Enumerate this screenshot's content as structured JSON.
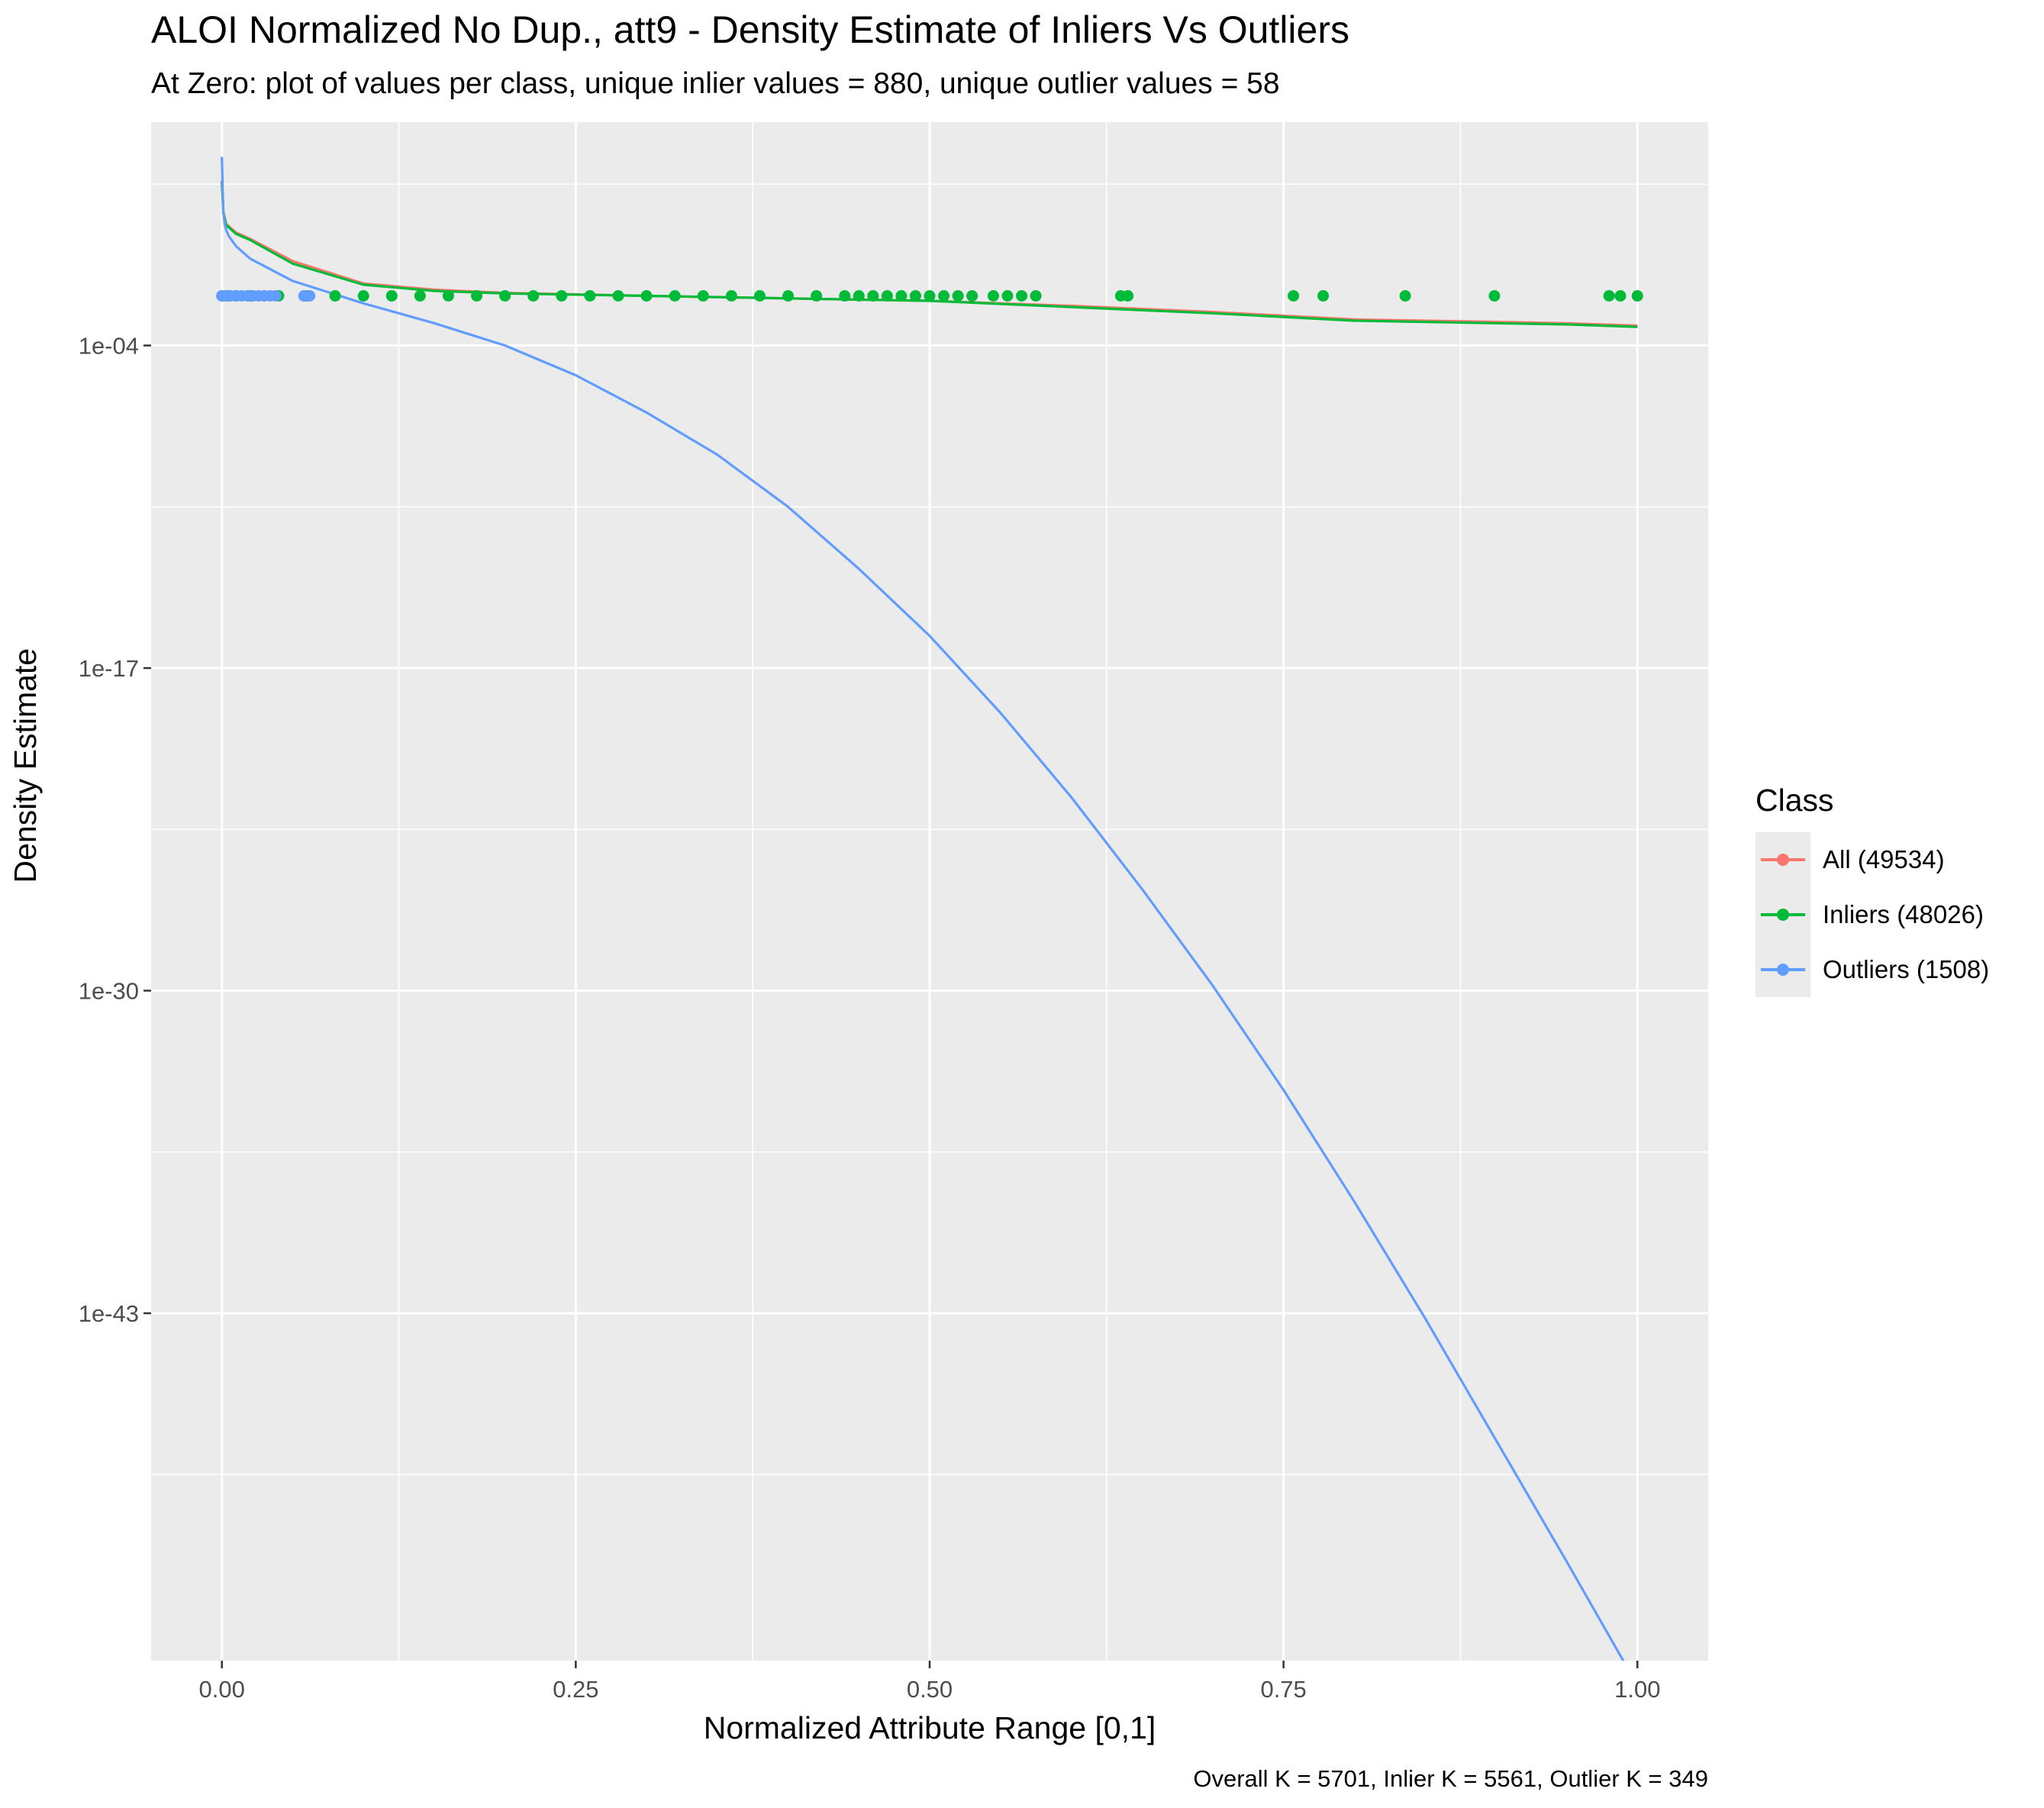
{
  "chart_data": {
    "type": "line",
    "title": "ALOI Normalized No Dup., att9 - Density Estimate of Inliers Vs Outliers",
    "subtitle": "At Zero: plot of values per class, unique inlier values = 880, unique outlier values = 58",
    "caption": "Overall K = 5701, Inlier K = 5561, Outlier K = 349",
    "xlabel": "Normalized Attribute Range [0,1]",
    "ylabel": "Density Estimate",
    "xlim": [
      -0.05,
      1.05
    ],
    "x_ticks": [
      0.0,
      0.25,
      0.5,
      0.75,
      1.0
    ],
    "x_tick_labels": [
      "0.00",
      "0.25",
      "0.50",
      "0.75",
      "1.00"
    ],
    "y_scale": "log10",
    "ylim_log10": [
      -57,
      5
    ],
    "y_ticks_log10": [
      -43,
      -30,
      -17,
      -4
    ],
    "y_tick_labels": [
      "1e-43",
      "1e-30",
      "1e-17",
      "1e-04"
    ],
    "grid": true,
    "legend": {
      "title": "Class",
      "placement": "right",
      "entries": [
        "All (49534)",
        "Inliers (48026)",
        "Outliers (1508)"
      ]
    },
    "colors": {
      "all": "#F8766D",
      "inliers": "#00BA38",
      "outliers": "#619CFF",
      "panel": "#EBEBEB",
      "grid": "#FFFFFF"
    },
    "series": [
      {
        "name": "All (49534)",
        "color": "#F8766D",
        "x": [
          0.0,
          0.001,
          0.003,
          0.01,
          0.02,
          0.05,
          0.1,
          0.15,
          0.2,
          0.3,
          0.4,
          0.5,
          0.6,
          0.7,
          0.75,
          0.8,
          0.85,
          0.9,
          0.95,
          1.0
        ],
        "y_log10": [
          2.65,
          1.4,
          0.9,
          0.55,
          0.3,
          -0.6,
          -1.5,
          -1.75,
          -1.88,
          -2.0,
          -2.1,
          -2.2,
          -2.4,
          -2.65,
          -2.8,
          -2.95,
          -3.0,
          -3.05,
          -3.1,
          -3.2
        ]
      },
      {
        "name": "Inliers (48026)",
        "color": "#00BA38",
        "x": [
          0.0,
          0.001,
          0.003,
          0.01,
          0.02,
          0.05,
          0.1,
          0.15,
          0.2,
          0.3,
          0.4,
          0.5,
          0.6,
          0.7,
          0.75,
          0.8,
          0.85,
          0.9,
          0.95,
          1.0
        ],
        "y_log10": [
          2.6,
          1.35,
          0.85,
          0.5,
          0.25,
          -0.7,
          -1.55,
          -1.8,
          -1.9,
          -2.0,
          -2.1,
          -2.2,
          -2.45,
          -2.7,
          -2.85,
          -3.0,
          -3.05,
          -3.1,
          -3.15,
          -3.25
        ],
        "points_at_zero": [
          0.0,
          0.005,
          0.01,
          0.02,
          0.04,
          0.06,
          0.08,
          0.1,
          0.12,
          0.14,
          0.16,
          0.18,
          0.2,
          0.22,
          0.24,
          0.26,
          0.28,
          0.3,
          0.32,
          0.34,
          0.36,
          0.38,
          0.4,
          0.42,
          0.44,
          0.45,
          0.46,
          0.47,
          0.48,
          0.49,
          0.5,
          0.51,
          0.52,
          0.53,
          0.545,
          0.555,
          0.565,
          0.575,
          0.635,
          0.64,
          0.757,
          0.778,
          0.836,
          0.899,
          0.98,
          0.988,
          1.0
        ]
      },
      {
        "name": "Outliers (1508)",
        "color": "#619CFF",
        "x": [
          0.0,
          0.0005,
          0.001,
          0.002,
          0.003,
          0.005,
          0.01,
          0.02,
          0.05,
          0.1,
          0.15,
          0.2,
          0.25,
          0.3,
          0.35,
          0.4,
          0.45,
          0.5,
          0.55,
          0.6,
          0.65,
          0.7,
          0.75,
          0.8,
          0.85,
          0.9,
          0.95,
          1.0
        ],
        "y_log10": [
          3.6,
          2.3,
          1.4,
          0.9,
          0.65,
          0.4,
          0.0,
          -0.5,
          -1.4,
          -2.3,
          -3.1,
          -4.0,
          -5.2,
          -6.7,
          -8.4,
          -10.5,
          -13.0,
          -15.7,
          -18.8,
          -22.2,
          -25.9,
          -29.8,
          -34.0,
          -38.5,
          -43.2,
          -48.1,
          -53.0,
          -58.0
        ],
        "points_at_zero": [
          0.0,
          0.003,
          0.006,
          0.01,
          0.014,
          0.018,
          0.022,
          0.026,
          0.03,
          0.034,
          0.038,
          0.058,
          0.062
        ]
      }
    ]
  }
}
